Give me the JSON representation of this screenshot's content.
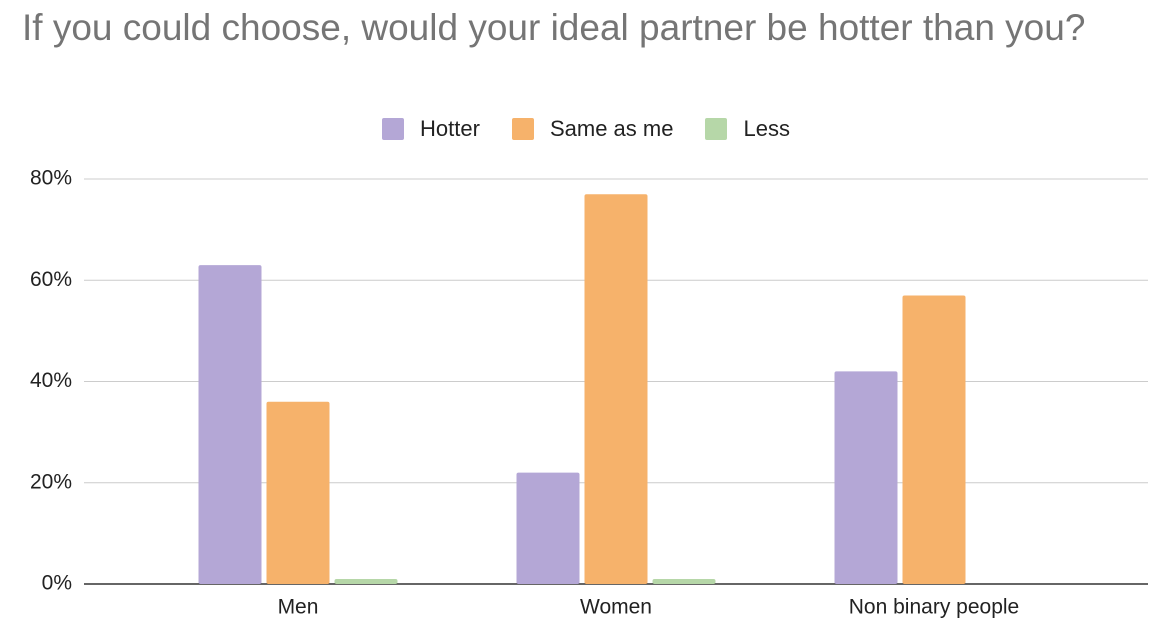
{
  "chart_data": {
    "type": "bar",
    "title": "If you could choose, would your ideal partner be hotter than you?",
    "categories": [
      "Men",
      "Women",
      "Non binary people"
    ],
    "series": [
      {
        "name": "Hotter",
        "color": "#b4a7d6",
        "values": [
          63,
          22,
          42
        ]
      },
      {
        "name": "Same as me",
        "color": "#f6b26b",
        "values": [
          36,
          77,
          57
        ]
      },
      {
        "name": "Less",
        "color": "#b6d7a8",
        "values": [
          1,
          1,
          0
        ]
      }
    ],
    "ylim": [
      0,
      80
    ],
    "yticks": [
      {
        "value": 0,
        "label": "0%"
      },
      {
        "value": 20,
        "label": "20%"
      },
      {
        "value": 40,
        "label": "40%"
      },
      {
        "value": 60,
        "label": "60%"
      },
      {
        "value": 80,
        "label": "80%"
      }
    ],
    "grid": true,
    "legend": "top"
  }
}
